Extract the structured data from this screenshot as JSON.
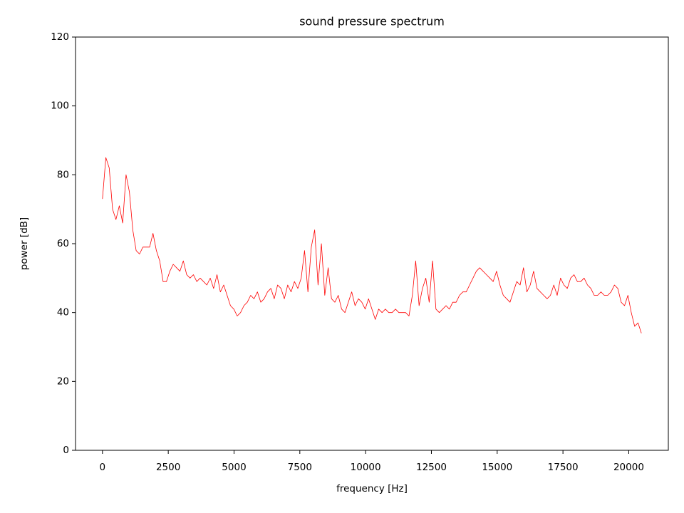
{
  "chart_data": {
    "type": "line",
    "title": "sound pressure spectrum",
    "xlabel": "frequency [Hz]",
    "ylabel": "power [dB]",
    "xlim": [
      -1024,
      21504
    ],
    "ylim": [
      0,
      120
    ],
    "xticks": [
      0,
      2500,
      5000,
      7500,
      10000,
      12500,
      15000,
      17500,
      20000
    ],
    "yticks": [
      0,
      20,
      40,
      60,
      80,
      100,
      120
    ],
    "x": [
      0,
      128,
      256,
      384,
      512,
      640,
      768,
      896,
      1024,
      1152,
      1280,
      1408,
      1536,
      1664,
      1792,
      1920,
      2048,
      2176,
      2304,
      2432,
      2560,
      2688,
      2816,
      2944,
      3072,
      3200,
      3328,
      3456,
      3584,
      3712,
      3840,
      3968,
      4096,
      4224,
      4352,
      4480,
      4608,
      4736,
      4864,
      4992,
      5120,
      5248,
      5376,
      5504,
      5632,
      5760,
      5888,
      6016,
      6144,
      6272,
      6400,
      6528,
      6656,
      6784,
      6912,
      7040,
      7168,
      7296,
      7424,
      7552,
      7680,
      7808,
      7936,
      8064,
      8192,
      8320,
      8448,
      8576,
      8704,
      8832,
      8960,
      9088,
      9216,
      9344,
      9472,
      9600,
      9728,
      9856,
      9984,
      10112,
      10240,
      10368,
      10496,
      10624,
      10752,
      10880,
      11008,
      11136,
      11264,
      11392,
      11520,
      11648,
      11776,
      11904,
      12032,
      12160,
      12288,
      12416,
      12544,
      12672,
      12800,
      12928,
      13056,
      13184,
      13312,
      13440,
      13568,
      13696,
      13824,
      13952,
      14080,
      14208,
      14336,
      14464,
      14592,
      14720,
      14848,
      14976,
      15104,
      15232,
      15360,
      15488,
      15616,
      15744,
      15872,
      16000,
      16128,
      16256,
      16384,
      16512,
      16640,
      16768,
      16896,
      17024,
      17152,
      17280,
      17408,
      17536,
      17664,
      17792,
      17920,
      18048,
      18176,
      18304,
      18432,
      18560,
      18688,
      18816,
      18944,
      19072,
      19200,
      19328,
      19456,
      19584,
      19712,
      19840,
      19968,
      20096,
      20224,
      20352,
      20480
    ],
    "series": [
      {
        "color": "#ff0000",
        "values": [
          73,
          85,
          82,
          70,
          67,
          71,
          66,
          80,
          75,
          64,
          58,
          57,
          59,
          59,
          59,
          63,
          58,
          55,
          49,
          49,
          52,
          54,
          53,
          52,
          55,
          51,
          50,
          51,
          49,
          50,
          49,
          48,
          50,
          47,
          51,
          46,
          48,
          45,
          42,
          41,
          39,
          40,
          42,
          43,
          45,
          44,
          46,
          43,
          44,
          46,
          47,
          44,
          48,
          47,
          44,
          48,
          46,
          49,
          47,
          50,
          58,
          46,
          59,
          64,
          48,
          60,
          45,
          53,
          44,
          43,
          45,
          41,
          40,
          43,
          46,
          42,
          44,
          43,
          41,
          44,
          41,
          38,
          41,
          40,
          41,
          40,
          40,
          41,
          40,
          40,
          40,
          39,
          45,
          55,
          42,
          47,
          50,
          43,
          55,
          41,
          40,
          41,
          42,
          41,
          43,
          43,
          45,
          46,
          46,
          48,
          50,
          52,
          53,
          52,
          51,
          50,
          49,
          52,
          48,
          45,
          44,
          43,
          46,
          49,
          48,
          53,
          46,
          48,
          52,
          47,
          46,
          45,
          44,
          45,
          48,
          45,
          50,
          48,
          47,
          50,
          51,
          49,
          49,
          50,
          48,
          47,
          45,
          45,
          46,
          45,
          45,
          46,
          48,
          47,
          43,
          42,
          45,
          40,
          36,
          37,
          34
        ]
      }
    ]
  }
}
